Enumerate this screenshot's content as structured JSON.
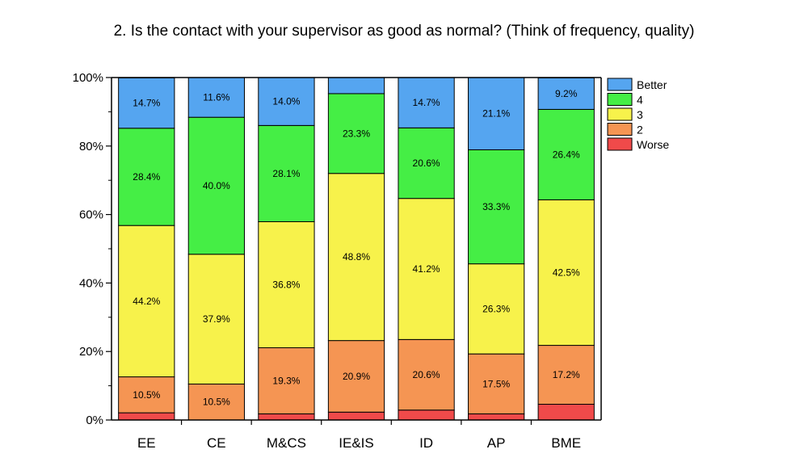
{
  "chart_data": {
    "type": "bar",
    "stacked": true,
    "normalized": true,
    "title": "2. Is the contact with your supervisor as good as normal? (Think of frequency, quality)",
    "xlabel": "",
    "ylabel": "",
    "ylim": [
      0,
      100
    ],
    "yticks": [
      "0%",
      "20%",
      "40%",
      "60%",
      "80%",
      "100%"
    ],
    "legend_position": "right",
    "categories": [
      "EE",
      "CE",
      "M&CS",
      "IE&IS",
      "ID",
      "AP",
      "BME"
    ],
    "series": [
      {
        "name": "Worse",
        "color": "#f04a4a",
        "values": [
          2.1,
          0.0,
          1.8,
          2.3,
          2.9,
          1.8,
          4.6
        ]
      },
      {
        "name": "2",
        "color": "#f59553",
        "values": [
          10.5,
          10.5,
          19.3,
          20.9,
          20.6,
          17.5,
          17.2
        ]
      },
      {
        "name": "3",
        "color": "#f7f24b",
        "values": [
          44.2,
          37.9,
          36.8,
          48.8,
          41.2,
          26.3,
          42.5
        ]
      },
      {
        "name": "4",
        "color": "#45ee45",
        "values": [
          28.4,
          40.0,
          28.1,
          23.3,
          20.6,
          33.3,
          26.4
        ]
      },
      {
        "name": "Better",
        "color": "#55a5f0",
        "values": [
          14.7,
          11.6,
          14.0,
          4.7,
          14.7,
          21.1,
          9.2
        ]
      }
    ],
    "data_labels": {
      "Worse": [
        "",
        "",
        "",
        "",
        "",
        "",
        ""
      ],
      "2": [
        "10.5%",
        "10.5%",
        "19.3%",
        "20.9%",
        "20.6%",
        "17.5%",
        "17.2%"
      ],
      "3": [
        "44.2%",
        "37.9%",
        "36.8%",
        "48.8%",
        "41.2%",
        "26.3%",
        "42.5%"
      ],
      "4": [
        "28.4%",
        "40.0%",
        "28.1%",
        "23.3%",
        "20.6%",
        "33.3%",
        "26.4%"
      ],
      "Better": [
        "14.7%",
        "11.6%",
        "14.0%",
        "",
        "14.7%",
        "21.1%",
        "9.2%"
      ]
    },
    "legend_order": [
      "Better",
      "4",
      "3",
      "2",
      "Worse"
    ]
  }
}
